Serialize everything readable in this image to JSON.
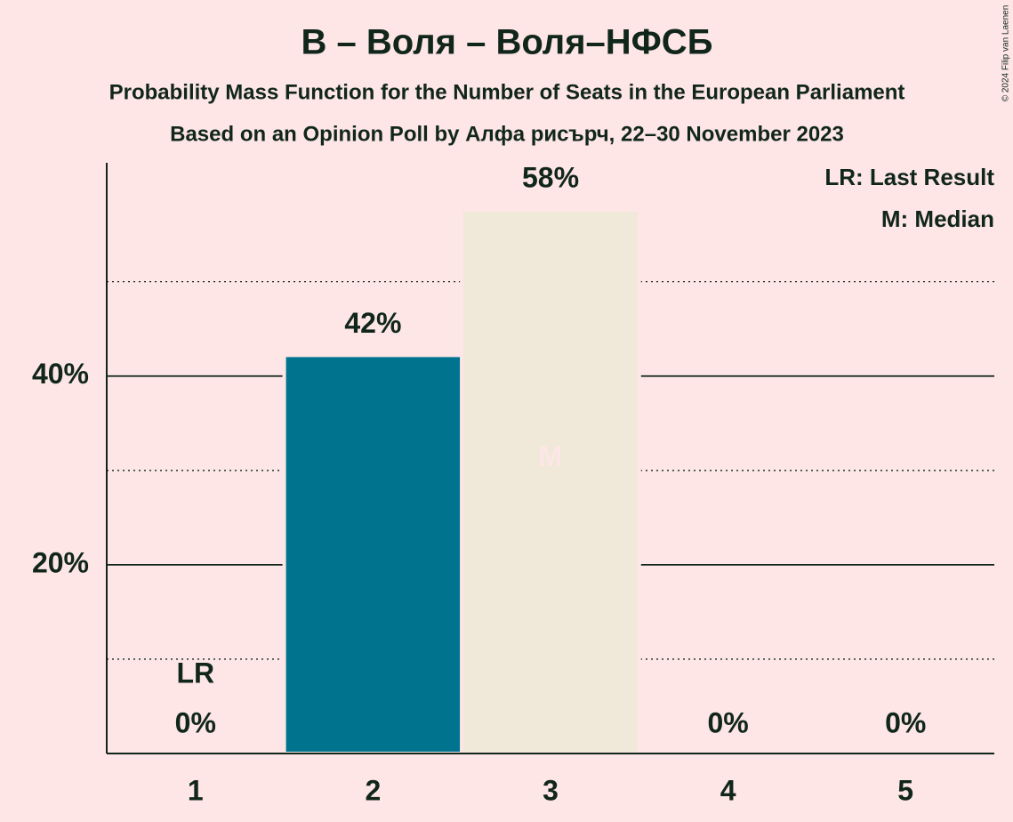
{
  "chart_data": {
    "type": "bar",
    "title": "В – Воля – Воля–НФСБ",
    "subtitle": "Probability Mass Function for the Number of Seats in the European Parliament",
    "subtitle2": "Based on an Opinion Poll by Алфа рисърч, 22–30 November 2023",
    "categories": [
      "1",
      "2",
      "3",
      "4",
      "5"
    ],
    "values": [
      0,
      42.2,
      57.6,
      0,
      0
    ],
    "value_labels": [
      "0%",
      "42%",
      "58%",
      "0%",
      "0%"
    ],
    "colors": [
      "#00748f",
      "#00748f",
      "#f0e8d8",
      "#00748f",
      "#00748f"
    ],
    "ylim": [
      0,
      62.6
    ],
    "yticks": [
      {
        "value": 20,
        "label": "20%"
      },
      {
        "value": 40,
        "label": "40%"
      }
    ],
    "minor_gridlines": [
      10,
      30,
      50
    ],
    "grid": true,
    "annotations": [
      {
        "label": "LR",
        "x": "1"
      },
      {
        "label": "M",
        "x": "3"
      }
    ],
    "legend": [
      "LR: Last Result",
      "M: Median"
    ],
    "legend_position": "upper right",
    "copyright": "© 2024 Filip van Laenen"
  }
}
